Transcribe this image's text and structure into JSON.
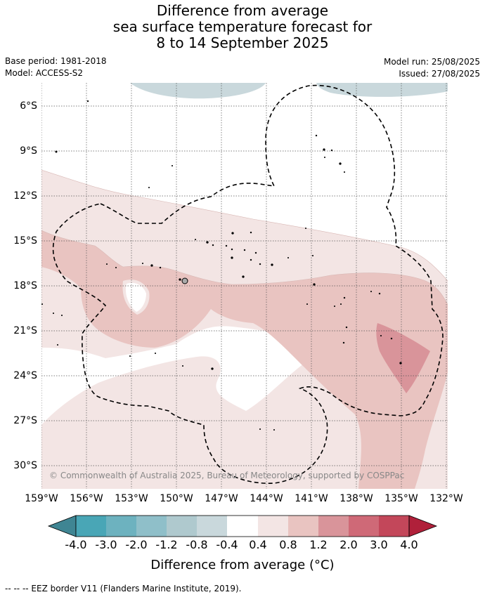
{
  "title": {
    "line1": "Difference from average",
    "line2": "sea surface temperature forecast for",
    "line3": "8 to 14 September 2025"
  },
  "meta": {
    "base_period": "Base period: 1981-2018",
    "model": "Model: ACCESS-S2",
    "model_run": "Model run: 25/08/2025",
    "issued": "Issued: 27/08/2025"
  },
  "map": {
    "lat_ticks": [
      "6°S",
      "9°S",
      "12°S",
      "15°S",
      "18°S",
      "21°S",
      "24°S",
      "27°S",
      "30°S"
    ],
    "lon_ticks": [
      "159°W",
      "156°W",
      "153°W",
      "150°W",
      "147°W",
      "144°W",
      "141°W",
      "138°W",
      "135°W",
      "132°W"
    ],
    "copyright": "© Commonwealth of Australia 2025, Bureau of Meteorology, supported by COSPPac"
  },
  "colorbar": {
    "colors": [
      "#3f8593",
      "#49a6b6",
      "#6db2bf",
      "#8fbfc9",
      "#afc9ce",
      "#c9d8dc",
      "#ffffff",
      "#f3e5e4",
      "#e9c4c1",
      "#d9949a",
      "#cf6977",
      "#c3475a",
      "#b0203a"
    ],
    "ticks": [
      "-4.0",
      "-3.0",
      "-2.0",
      "-1.2",
      "-0.8",
      "-0.4",
      "0.4",
      "0.8",
      "1.2",
      "2.0",
      "3.0",
      "4.0"
    ],
    "label": "Difference from average (°C)"
  },
  "legend_note": "--  --  -- EEZ border V11 (Flanders Marine Institute, 2019)."
}
